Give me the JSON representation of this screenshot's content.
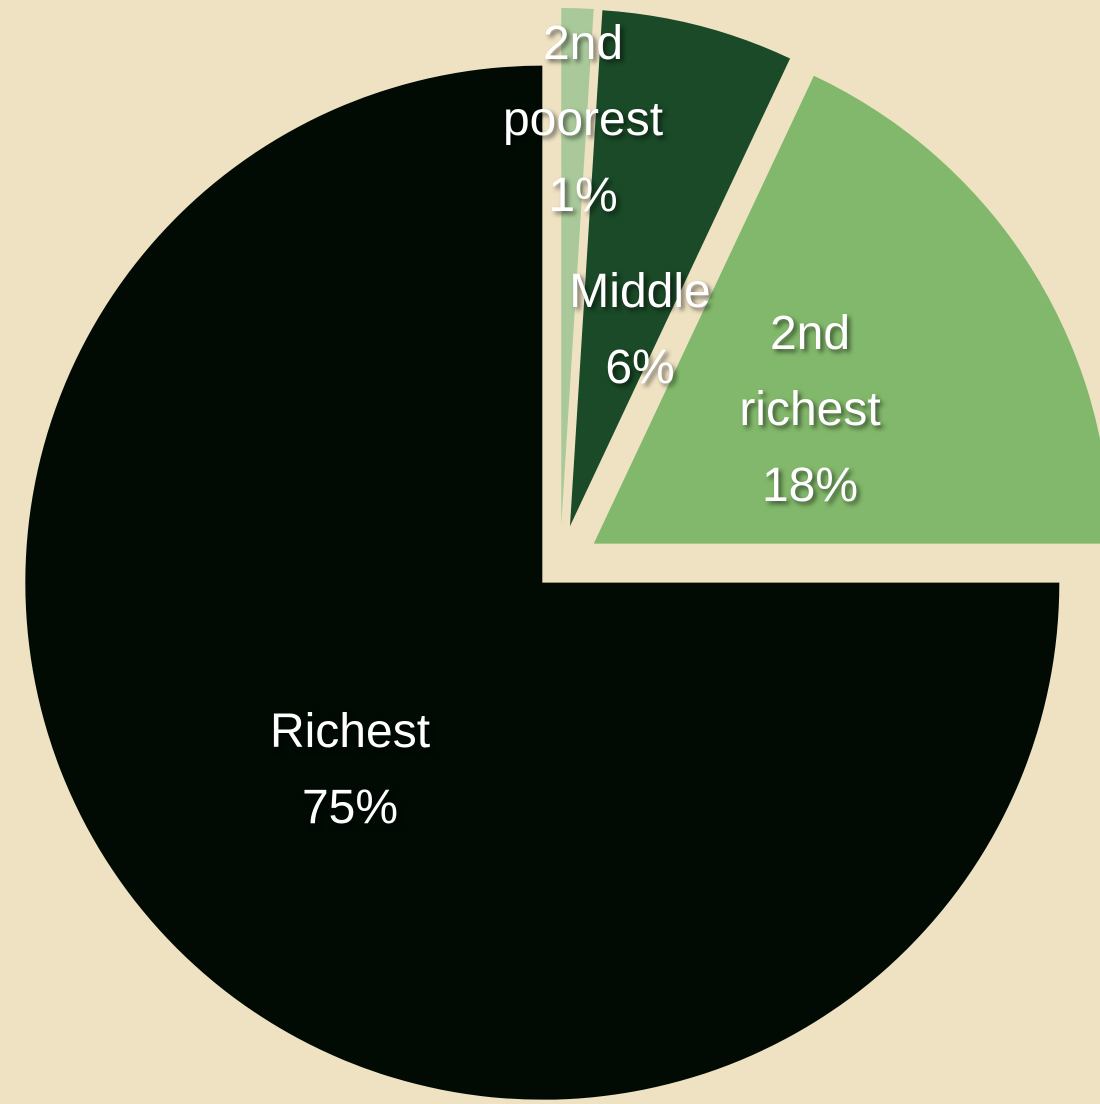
{
  "chart_data": {
    "type": "pie",
    "categories": [
      "2nd poorest",
      "Middle",
      "2nd richest",
      "Richest"
    ],
    "values": [
      1,
      6,
      18,
      75
    ],
    "value_labels": [
      "1%",
      "6%",
      "18%",
      "75%"
    ],
    "colors": [
      "#a9c99a",
      "#1a4a27",
      "#82b86b",
      "#010b04"
    ]
  }
}
